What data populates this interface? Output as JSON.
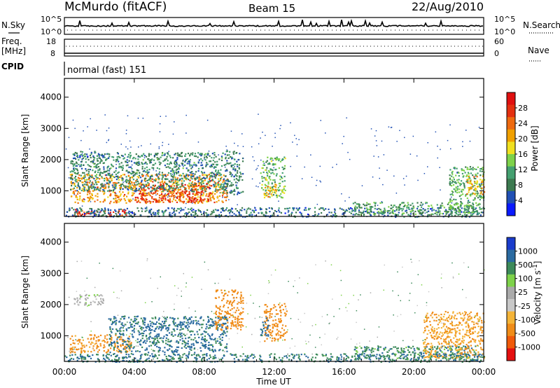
{
  "header": {
    "station": "McMurdo (fitACF)",
    "beam": "Beam 15",
    "date": "22/Aug/2010"
  },
  "noise_panel": {
    "left_label": "N.Sky",
    "right_label": "N.Search",
    "left_ticks": [
      "10^5",
      "10^0"
    ],
    "right_ticks": [
      "10^5",
      "10^0"
    ]
  },
  "freq_panel": {
    "left_label_line1": "Freq.",
    "left_label_line2": "[MHz]",
    "right_label": "Nave",
    "left_ticks": [
      "18",
      "8"
    ],
    "right_ticks": [
      "60",
      "0"
    ]
  },
  "cpid": {
    "label": "CPID",
    "value": "normal (fast) 151"
  },
  "colors": {
    "power": [
      "#0a1aff",
      "#2050b4",
      "#3c7a50",
      "#44a070",
      "#7ed24a",
      "#f0e020",
      "#f0a000",
      "#ee6a10",
      "#e43010",
      "#e01010"
    ],
    "velocity": [
      "#e41010",
      "#f05a0a",
      "#f08c18",
      "#f4b438",
      "#c8c8c8",
      "#aaaaaa",
      "#7ed24a",
      "#3c8a5a",
      "#2a6aa0",
      "#1a3ccc"
    ],
    "ground_scatter": "#a0a0a0"
  },
  "chart_data": [
    {
      "type": "heatmap",
      "name": "power",
      "ylabel": "Slant Range [km]",
      "xlim": [
        0,
        24
      ],
      "ylim": [
        180,
        4600
      ],
      "yticks": [
        1000,
        2000,
        3000,
        4000
      ],
      "ytick_labels": [
        "1000",
        "2000",
        "3000",
        "4000"
      ],
      "colorbar_label": "Power [dB]",
      "colorbar_range": [
        0,
        32
      ],
      "colorbar_ticks": [
        "4",
        "8",
        "12",
        "16",
        "20",
        "24",
        "28"
      ],
      "regions": [
        {
          "t": [
            0.3,
            9.3
          ],
          "r": [
            620,
            1550
          ],
          "v": 22
        },
        {
          "t": [
            4.0,
            8.4
          ],
          "r": [
            650,
            1250
          ],
          "v": 27
        },
        {
          "t": [
            0.3,
            9.0
          ],
          "r": [
            1000,
            2250
          ],
          "v": 9
        },
        {
          "t": [
            0.8,
            2.2
          ],
          "r": [
            2050,
            2300
          ],
          "v": 7
        },
        {
          "t": [
            0.5,
            3.5
          ],
          "r": [
            200,
            420
          ],
          "v": 28
        },
        {
          "t": [
            0.0,
            24.0
          ],
          "r": [
            180,
            480
          ],
          "v": 7
        },
        {
          "t": [
            9.0,
            10.2
          ],
          "r": [
            900,
            2300
          ],
          "v": 8
        },
        {
          "t": [
            11.2,
            12.6
          ],
          "r": [
            800,
            2100
          ],
          "v": 13
        },
        {
          "t": [
            11.4,
            12.1
          ],
          "r": [
            800,
            1300
          ],
          "v": 20
        },
        {
          "t": [
            16.5,
            23.5
          ],
          "r": [
            250,
            650
          ],
          "v": 11
        },
        {
          "t": [
            22.0,
            24.0
          ],
          "r": [
            300,
            1800
          ],
          "v": 12
        },
        {
          "t": [
            23.0,
            24.0
          ],
          "r": [
            900,
            1500
          ],
          "v": 20
        }
      ]
    },
    {
      "type": "heatmap",
      "name": "velocity",
      "xlabel": "Time UT",
      "ylabel": "Slant Range [km]",
      "xlim": [
        0,
        24
      ],
      "ylim": [
        180,
        4600
      ],
      "xtick_labels": [
        "00:00",
        "04:00",
        "08:00",
        "12:00",
        "16:00",
        "20:00",
        "00:00"
      ],
      "yticks": [
        1000,
        2000,
        3000,
        4000
      ],
      "ytick_labels": [
        "1000",
        "2000",
        "3000",
        "4000"
      ],
      "colorbar_label": "Velocity [m s^-1]",
      "colorbar_ticks": [
        "1000",
        "500",
        "100",
        "25",
        "-25",
        "-100",
        "-500",
        "-1000"
      ],
      "regions": [
        {
          "t": [
            0.3,
            3.8
          ],
          "r": [
            480,
            1050
          ],
          "v": -150
        },
        {
          "t": [
            2.5,
            9.3
          ],
          "r": [
            480,
            1650
          ],
          "v": 120
        },
        {
          "t": [
            0.5,
            2.2
          ],
          "r": [
            2000,
            2350
          ],
          "v": 0
        },
        {
          "t": [
            8.6,
            10.2
          ],
          "r": [
            1200,
            2500
          ],
          "v": -200
        },
        {
          "t": [
            11.4,
            12.7
          ],
          "r": [
            850,
            2050
          ],
          "v": -200
        },
        {
          "t": [
            11.2,
            11.7
          ],
          "r": [
            1000,
            1600
          ],
          "v": 150
        },
        {
          "t": [
            16.5,
            23.5
          ],
          "r": [
            250,
            700
          ],
          "v": 80
        },
        {
          "t": [
            20.5,
            24.0
          ],
          "r": [
            300,
            1800
          ],
          "v": -100
        },
        {
          "t": [
            0.0,
            24.0
          ],
          "r": [
            180,
            450
          ],
          "v": 100
        }
      ]
    }
  ]
}
